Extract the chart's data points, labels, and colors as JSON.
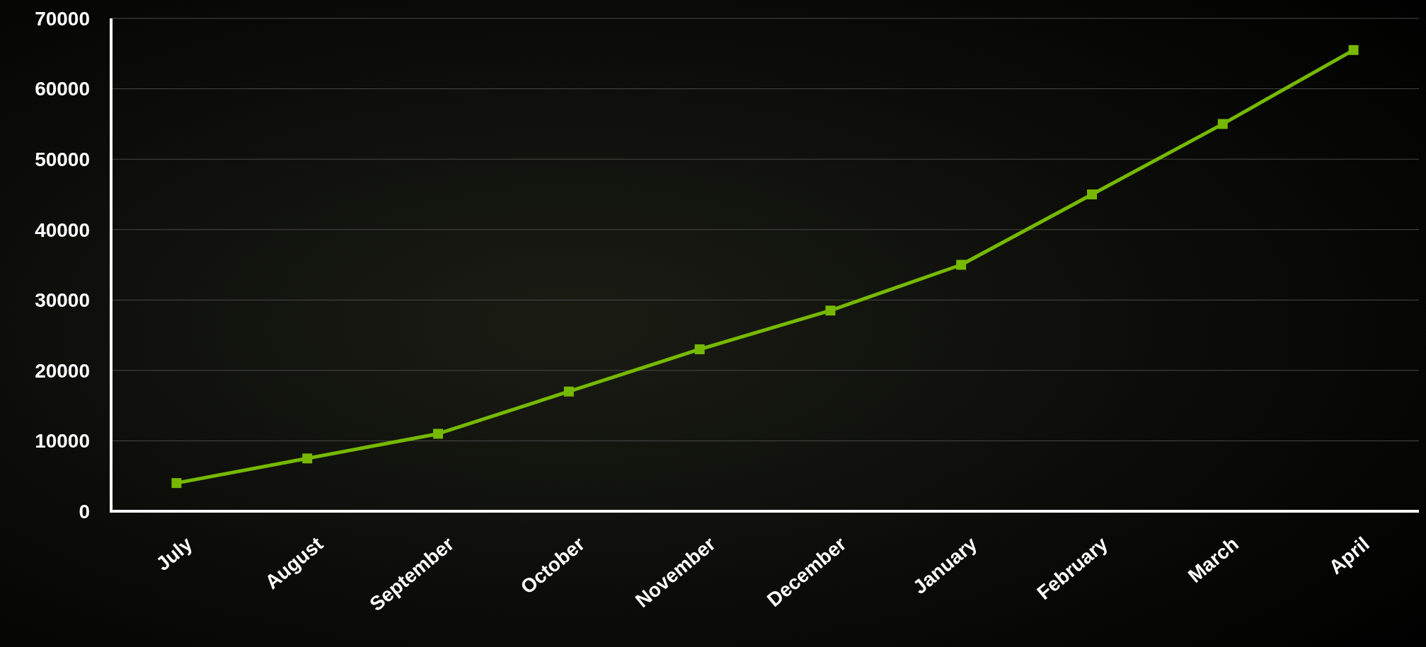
{
  "chart_data": {
    "type": "line",
    "categories": [
      "July",
      "August",
      "September",
      "October",
      "November",
      "December",
      "January",
      "February",
      "March",
      "April"
    ],
    "series": [
      {
        "color": "#76b900",
        "values": [
          4000,
          7500,
          11000,
          17000,
          23000,
          28500,
          35000,
          45000,
          55000,
          65500
        ]
      }
    ],
    "ylim": [
      0,
      70000
    ],
    "yticks": [
      0,
      10000,
      20000,
      30000,
      40000,
      50000,
      60000,
      70000
    ],
    "grid": "y",
    "marker": "square",
    "line_style": "solid"
  }
}
